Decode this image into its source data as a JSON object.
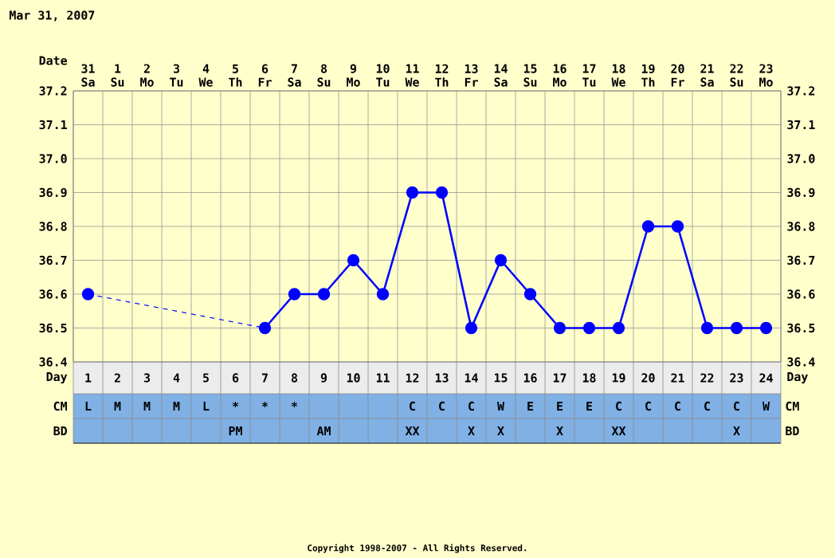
{
  "chart_data": [
    {
      "type": "line",
      "title": "Mar 31, 2007",
      "xlabel": "Day",
      "x2label": "Date",
      "categories": [
        "1",
        "2",
        "3",
        "4",
        "5",
        "6",
        "7",
        "8",
        "9",
        "10",
        "11",
        "12",
        "13",
        "14",
        "15",
        "16",
        "17",
        "18",
        "19",
        "20",
        "21",
        "22",
        "23",
        "24"
      ],
      "series": [
        {
          "color": "#0000ff",
          "values": [
            36.6,
            null,
            null,
            null,
            null,
            null,
            36.5,
            36.6,
            36.6,
            36.7,
            36.6,
            36.9,
            36.9,
            36.5,
            36.7,
            36.6,
            36.5,
            36.5,
            36.5,
            36.8,
            36.8,
            36.5,
            36.5,
            36.5
          ]
        }
      ],
      "ylim": [
        36.4,
        37.2
      ],
      "yticks": [
        36.4,
        36.5,
        36.6,
        36.7,
        36.8,
        36.9,
        {
          "value": 37.0,
          "label": "37.0"
        },
        37.1,
        37.2
      ],
      "y2lim": [
        36.4,
        37.2
      ],
      "y2ticks": [
        36.4,
        36.5,
        36.6,
        36.7,
        36.8,
        36.9,
        {
          "value": 37.0,
          "label": "37.0"
        },
        37.1,
        37.2
      ],
      "x2lim": [
        "2007-03-30T12:00",
        "2007-04-23T12:00"
      ],
      "x2ticks": [
        {
          "value": "2007-03-31",
          "label": "31 Sa"
        },
        {
          "value": "2007-04-01",
          "label": "1 Su"
        },
        {
          "value": "2007-04-02",
          "label": "2 Mo"
        },
        {
          "value": "2007-04-03",
          "label": "3 Tu"
        },
        {
          "value": "2007-04-04",
          "label": "4 We"
        },
        {
          "value": "2007-04-05",
          "label": "5 Th"
        },
        {
          "value": "2007-04-06",
          "label": "6 Fr"
        },
        {
          "value": "2007-04-07",
          "label": "7 Sa"
        },
        {
          "value": "2007-04-08",
          "label": "8 Su"
        },
        {
          "value": "2007-04-09",
          "label": "9 Mo"
        },
        {
          "value": "2007-04-10",
          "label": "10 Tu"
        },
        {
          "value": "2007-04-11",
          "label": "11 We"
        },
        {
          "value": "2007-04-12",
          "label": "12 Th"
        },
        {
          "value": "2007-04-13",
          "label": "13 Fr"
        },
        {
          "value": "2007-04-14",
          "label": "14 Sa"
        },
        {
          "value": "2007-04-15",
          "label": "15 Su"
        },
        {
          "value": "2007-04-16",
          "label": "16 Mo"
        },
        {
          "value": "2007-04-17",
          "label": "17 Tu"
        },
        {
          "value": "2007-04-18",
          "label": "18 We"
        },
        {
          "value": "2007-04-19",
          "label": "19 Th"
        },
        {
          "value": "2007-04-20",
          "label": "20 Fr"
        },
        {
          "value": "2007-04-21",
          "label": "21 Sa"
        },
        {
          "value": "2007-04-22",
          "label": "22 Su"
        },
        {
          "value": "2007-04-23",
          "label": "23 Mo"
        }
      ],
      "grid": true,
      "marker": "circle",
      "line_style": "solid",
      "annotations": [
        "Copyright 1998-2007 - All Rights Reserved."
      ]
    },
    {
      "type": "heatmap",
      "categories": [
        null,
        null,
        null,
        null,
        null,
        null,
        null,
        null,
        null,
        null,
        null,
        null,
        null,
        null,
        null,
        null,
        null,
        null,
        null,
        null,
        null,
        null,
        null,
        null
      ],
      "y_categories": [
        "CM",
        "BD"
      ],
      "y2_categories": [
        "CM",
        "BD"
      ],
      "cells": [
        [
          null,
          null,
          null,
          null,
          null,
          null,
          null,
          null,
          null,
          null,
          null,
          null,
          null,
          null,
          null,
          null,
          null,
          null,
          null,
          null,
          null,
          null,
          null,
          null
        ],
        [
          null,
          null,
          null,
          null,
          null,
          null,
          null,
          null,
          null,
          null,
          null,
          null,
          null,
          null,
          null,
          null,
          null,
          null,
          null,
          null,
          null,
          null,
          null,
          null
        ]
      ],
      "cell_labels": [
        [
          "L",
          "M",
          "M",
          "M",
          "L",
          "*",
          "*",
          "*",
          null,
          null,
          null,
          "C",
          "C",
          "C",
          "W",
          "E",
          "E",
          "E",
          "C",
          "C",
          "C",
          "C",
          "C",
          "W"
        ],
        [
          null,
          null,
          null,
          null,
          null,
          "PM",
          null,
          null,
          "AM",
          null,
          null,
          "XX",
          null,
          "X",
          "X",
          null,
          "X",
          null,
          "XX",
          null,
          null,
          null,
          "X",
          null
        ]
      ]
    }
  ]
}
